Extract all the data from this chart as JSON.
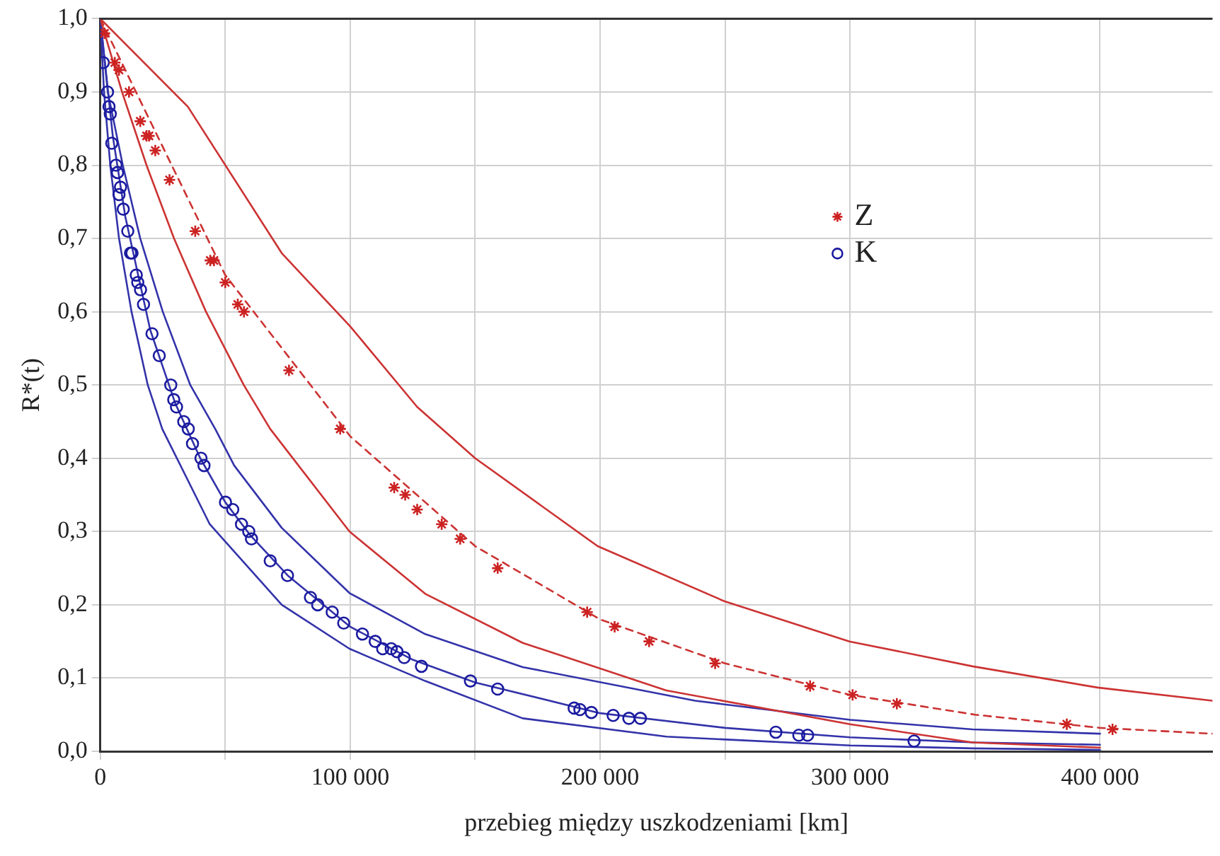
{
  "chart_data": {
    "type": "scatter",
    "xlabel": "przebieg między uszkodzeniami [km]",
    "ylabel": "R*(t)",
    "xlim": [
      0,
      445000
    ],
    "ylim": [
      0,
      1
    ],
    "xticks": [
      0,
      {
        "value": 50000,
        "label": null
      },
      {
        "value": 100000,
        "label": "100 000"
      },
      {
        "value": 150000,
        "label": null
      },
      {
        "value": 200000,
        "label": "200 000"
      },
      {
        "value": 250000,
        "label": null
      },
      {
        "value": 300000,
        "label": "300 000"
      },
      {
        "value": 350000,
        "label": null
      },
      {
        "value": 400000,
        "label": "400 000"
      }
    ],
    "yticks": [
      {
        "value": 0,
        "label": "0,0"
      },
      {
        "value": 0.1,
        "label": "0,1"
      },
      {
        "value": 0.2,
        "label": "0,2"
      },
      {
        "value": 0.3,
        "label": "0,3"
      },
      {
        "value": 0.4,
        "label": "0,4"
      },
      {
        "value": 0.5,
        "label": "0,5"
      },
      {
        "value": 0.6,
        "label": "0,6"
      },
      {
        "value": 0.7,
        "label": "0,7"
      },
      {
        "value": 0.8,
        "label": "0,8"
      },
      {
        "value": 0.9,
        "label": "0,9"
      },
      {
        "value": 1,
        "label": "1,0"
      }
    ],
    "grid": true,
    "legend": "top right",
    "series": [
      {
        "type": "line",
        "color": "#cc3333",
        "line_style": "solid",
        "marker": "none",
        "x": [
          0,
          35000,
          72600,
          100000,
          126800,
          150000,
          199000,
          249600,
          299700,
          349000,
          399000,
          445000
        ],
        "values": [
          1,
          0.88,
          0.68,
          0.58,
          0.47,
          0.4,
          0.28,
          0.205,
          0.15,
          0.116,
          0.087,
          0.069
        ]
      },
      {
        "type": "line",
        "color": "#cc3333",
        "line_style": "solid",
        "marker": "none",
        "x": [
          0,
          8700,
          18500,
          29500,
          42300,
          57400,
          68000,
          99700,
          130000,
          169000,
          226500,
          300000,
          349000,
          400000
        ],
        "values": [
          1,
          0.9,
          0.8,
          0.7,
          0.6,
          0.5,
          0.44,
          0.3,
          0.215,
          0.148,
          0.083,
          0.037,
          0.012,
          0.005
        ]
      },
      {
        "type": "line",
        "color": "#cc3333",
        "line_style": "dashed",
        "marker": "none",
        "x": [
          0,
          50000,
          100000,
          150000,
          200000,
          250000,
          300000,
          350000,
          400000,
          445000
        ],
        "values": [
          1,
          0.65,
          0.43,
          0.28,
          0.18,
          0.12,
          0.077,
          0.05,
          0.032,
          0.024
        ]
      },
      {
        "type": "line",
        "color": "#3333aa",
        "line_style": "solid",
        "marker": "none",
        "x": [
          0,
          3000,
          9000,
          16000,
          25000,
          36000,
          46000,
          53600,
          72600,
          99700,
          130000,
          169000,
          238000,
          300000,
          349000,
          400000
        ],
        "values": [
          1,
          0.9,
          0.8,
          0.7,
          0.6,
          0.5,
          0.44,
          0.39,
          0.305,
          0.216,
          0.16,
          0.115,
          0.069,
          0.043,
          0.03,
          0.024
        ]
      },
      {
        "type": "line",
        "color": "#3333aa",
        "line_style": "solid",
        "marker": "none",
        "x": [
          0,
          5000,
          10000,
          20000,
          30000,
          40000,
          50000,
          60000,
          75000,
          100000,
          125000,
          150000,
          200000,
          250000,
          300000,
          350000,
          400000
        ],
        "values": [
          1,
          0.84,
          0.73,
          0.575,
          0.475,
          0.4,
          0.34,
          0.295,
          0.24,
          0.17,
          0.125,
          0.094,
          0.052,
          0.032,
          0.019,
          0.012,
          0.009
        ]
      },
      {
        "type": "line",
        "color": "#3333aa",
        "line_style": "solid",
        "marker": "none",
        "x": [
          0,
          1500,
          4000,
          7500,
          12500,
          19000,
          24800,
          43800,
          72600,
          99700,
          130000,
          169000,
          226500,
          300000,
          349000,
          400000
        ],
        "values": [
          1,
          0.9,
          0.8,
          0.7,
          0.6,
          0.5,
          0.44,
          0.31,
          0.2,
          0.14,
          0.096,
          0.045,
          0.02,
          0.008,
          0.004,
          0.002
        ]
      },
      {
        "type": "scatter",
        "name": "Z",
        "color": "#cc2222",
        "marker": "cross",
        "x": [
          1700,
          5800,
          7500,
          11500,
          16000,
          18500,
          19500,
          22000,
          27700,
          38000,
          44000,
          45500,
          50000,
          55000,
          57500,
          75500,
          96000,
          117600,
          122000,
          126800,
          136600,
          144000,
          159000,
          194800,
          205800,
          219600,
          246000,
          284000,
          301000,
          318700,
          386700,
          405000
        ],
        "values": [
          0.98,
          0.94,
          0.93,
          0.9,
          0.86,
          0.84,
          0.84,
          0.82,
          0.78,
          0.71,
          0.67,
          0.67,
          0.64,
          0.61,
          0.6,
          0.52,
          0.44,
          0.36,
          0.35,
          0.33,
          0.31,
          0.29,
          0.25,
          0.19,
          0.17,
          0.15,
          0.12,
          0.089,
          0.077,
          0.065,
          0.037,
          0.03
        ]
      },
      {
        "type": "scatter",
        "name": "K",
        "color": "#1a1aa0",
        "marker": "circle",
        "x": [
          1200,
          2900,
          3500,
          4000,
          4600,
          6300,
          6900,
          7500,
          8100,
          9200,
          11000,
          12100,
          12700,
          14400,
          15000,
          16100,
          17300,
          20700,
          23600,
          28200,
          29400,
          30500,
          33400,
          35200,
          36900,
          40300,
          41500,
          50100,
          53000,
          56500,
          59400,
          60500,
          68000,
          74900,
          84100,
          87000,
          92800,
          97400,
          104900,
          110000,
          113000,
          116400,
          118700,
          121600,
          128500,
          148100,
          159000,
          189600,
          191900,
          196500,
          205200,
          211500,
          216100,
          270300,
          279500,
          283000,
          325600
        ],
        "values": [
          0.94,
          0.9,
          0.88,
          0.87,
          0.83,
          0.8,
          0.79,
          0.76,
          0.77,
          0.74,
          0.71,
          0.68,
          0.68,
          0.65,
          0.64,
          0.63,
          0.61,
          0.57,
          0.54,
          0.5,
          0.48,
          0.47,
          0.45,
          0.44,
          0.42,
          0.4,
          0.39,
          0.34,
          0.33,
          0.31,
          0.3,
          0.29,
          0.26,
          0.24,
          0.21,
          0.2,
          0.19,
          0.175,
          0.16,
          0.15,
          0.14,
          0.14,
          0.136,
          0.128,
          0.116,
          0.096,
          0.085,
          0.059,
          0.057,
          0.053,
          0.049,
          0.045,
          0.045,
          0.026,
          0.022,
          0.022,
          0.014
        ]
      }
    ]
  }
}
